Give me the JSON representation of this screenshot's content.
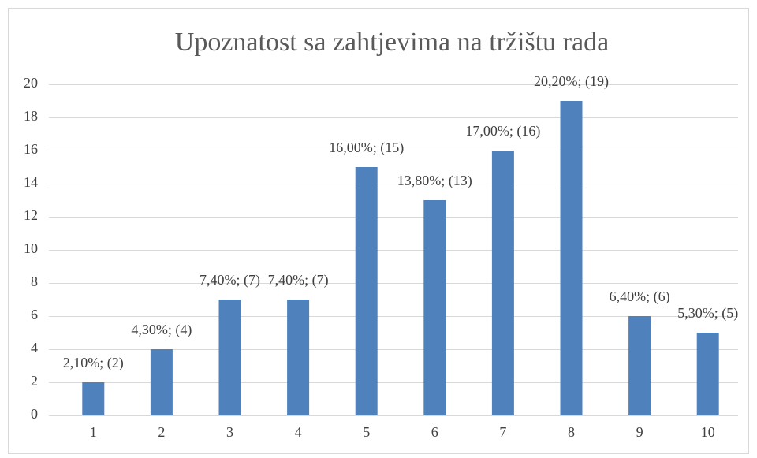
{
  "chart_data": {
    "type": "bar",
    "title": "Upoznatost sa zahtjevima na tržištu rada",
    "categories": [
      "1",
      "2",
      "3",
      "4",
      "5",
      "6",
      "7",
      "8",
      "9",
      "10"
    ],
    "values": [
      2,
      4,
      7,
      7,
      15,
      13,
      16,
      19,
      6,
      5
    ],
    "value_labels": [
      "2,10%; (2)",
      "4,30%; (4)",
      "7,40%; (7)",
      "7,40%; (7)",
      "16,00%; (15)",
      "13,80%; (13)",
      "17,00%; (16)",
      "20,20%; (19)",
      "6,40%; (6)",
      "5,30%; (5)"
    ],
    "color": "#4f81bd",
    "ylim": [
      0,
      20
    ],
    "yticks": [
      0,
      2,
      4,
      6,
      8,
      10,
      12,
      14,
      16,
      18,
      20
    ],
    "grid": true
  }
}
